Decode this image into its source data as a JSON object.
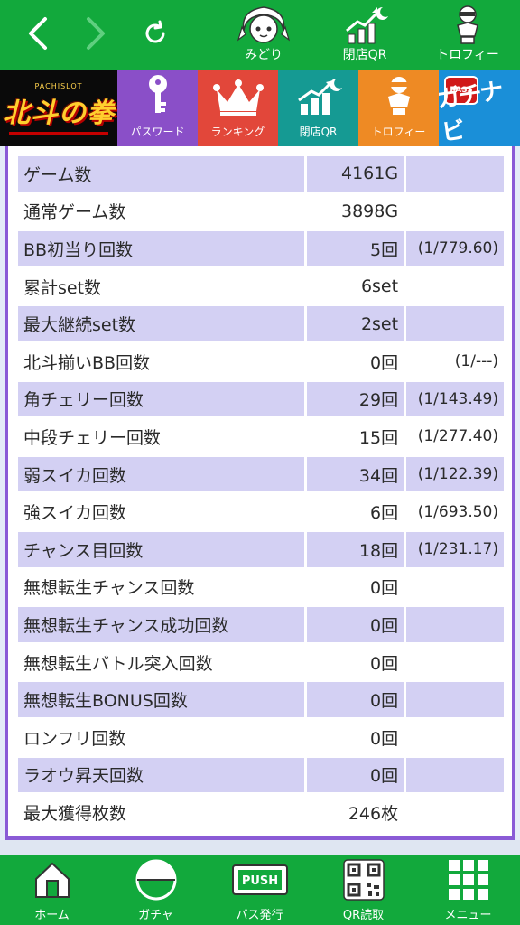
{
  "topbar": {
    "back_icon": "chevron-left-icon",
    "forward_icon": "chevron-right-icon",
    "reload_icon": "reload-icon",
    "buttons": [
      {
        "label": "みどり",
        "icon": "character-face-icon"
      },
      {
        "label": "閉店QR",
        "icon": "chart-moon-icon"
      },
      {
        "label": "トロフィー",
        "icon": "trophy-figure-icon"
      }
    ]
  },
  "category_bar": {
    "logo_small": "PACHISLOT",
    "logo_text": "北斗の拳",
    "items": [
      {
        "label": "パスワード",
        "icon": "key-icon",
        "color": "#8a4fc8"
      },
      {
        "label": "ランキング",
        "icon": "crown-icon",
        "color": "#e2473a"
      },
      {
        "label": "閉店QR",
        "icon": "chart-moon-icon",
        "color": "#159a93"
      },
      {
        "label": "トロフィー",
        "icon": "trophy-figure-icon",
        "color": "#ee8a24"
      }
    ],
    "navi": {
      "badge": "PASS",
      "text": "ガチナビ"
    }
  },
  "stats": {
    "rows": [
      {
        "label": "ゲーム数",
        "value": "4161G",
        "ratio": ""
      },
      {
        "label": "通常ゲーム数",
        "value": "3898G",
        "ratio": ""
      },
      {
        "label": "BB初当り回数",
        "value": "5回",
        "ratio": "(1/779.60)"
      },
      {
        "label": "累計set数",
        "value": "6set",
        "ratio": ""
      },
      {
        "label": "最大継続set数",
        "value": "2set",
        "ratio": ""
      },
      {
        "label": "北斗揃いBB回数",
        "value": "0回",
        "ratio": "(1/---)"
      },
      {
        "label": "角チェリー回数",
        "value": "29回",
        "ratio": "(1/143.49)"
      },
      {
        "label": "中段チェリー回数",
        "value": "15回",
        "ratio": "(1/277.40)"
      },
      {
        "label": "弱スイカ回数",
        "value": "34回",
        "ratio": "(1/122.39)"
      },
      {
        "label": "強スイカ回数",
        "value": "6回",
        "ratio": "(1/693.50)"
      },
      {
        "label": "チャンス目回数",
        "value": "18回",
        "ratio": "(1/231.17)"
      },
      {
        "label": "無想転生チャンス回数",
        "value": "0回",
        "ratio": ""
      },
      {
        "label": "無想転生チャンス成功回数",
        "value": "0回",
        "ratio": ""
      },
      {
        "label": "無想転生バトル突入回数",
        "value": "0回",
        "ratio": ""
      },
      {
        "label": "無想転生BONUS回数",
        "value": "0回",
        "ratio": ""
      },
      {
        "label": "ロンフリ回数",
        "value": "0回",
        "ratio": ""
      },
      {
        "label": "ラオウ昇天回数",
        "value": "0回",
        "ratio": ""
      },
      {
        "label": "最大獲得枚数",
        "value": "246枚",
        "ratio": ""
      }
    ]
  },
  "bottombar": {
    "items": [
      {
        "label": "ホーム",
        "icon": "home-icon"
      },
      {
        "label": "ガチャ",
        "icon": "gacha-ball-icon"
      },
      {
        "label": "パス発行",
        "icon": "push-pass-icon",
        "badge": "PUSH"
      },
      {
        "label": "QR読取",
        "icon": "qr-code-icon"
      },
      {
        "label": "メニュー",
        "icon": "grid-menu-icon"
      }
    ]
  },
  "colors": {
    "green": "#12a93c",
    "purple_border": "#8a5bd6",
    "row_shade": "#d3d0f3"
  }
}
